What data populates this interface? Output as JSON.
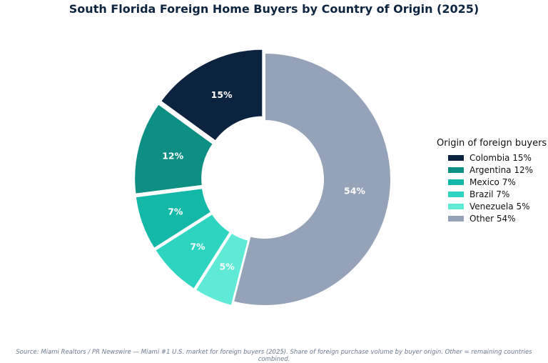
{
  "chart_data": {
    "type": "pie",
    "title": "South Florida Foreign Home Buyers by Country of Origin (2025)",
    "legend_title": "Origin of foreign buyers",
    "legend_position": "right",
    "slices": [
      {
        "name": "Colombia",
        "value": 15,
        "label": "15%",
        "legend": "Colombia 15%",
        "color": "#0c2340"
      },
      {
        "name": "Argentina",
        "value": 12,
        "label": "12%",
        "legend": "Argentina 12%",
        "color": "#0e8f83"
      },
      {
        "name": "Mexico",
        "value": 7,
        "label": "7%",
        "legend": "Mexico 7%",
        "color": "#14b8a6"
      },
      {
        "name": "Brazil",
        "value": 7,
        "label": "7%",
        "legend": "Brazil 7%",
        "color": "#2dd4bf"
      },
      {
        "name": "Venezuela",
        "value": 5,
        "label": "5%",
        "legend": "Venezuela 5%",
        "color": "#5eead4"
      },
      {
        "name": "Other",
        "value": 54,
        "label": "54%",
        "legend": "Other 54%",
        "color": "#94a3b8"
      }
    ]
  },
  "source": "Source: Miami Realtors / PR Newswire — Miami #1 U.S. market for foreign buyers (2025). Share of foreign purchase volume by buyer origin. Other = remaining countries combined."
}
